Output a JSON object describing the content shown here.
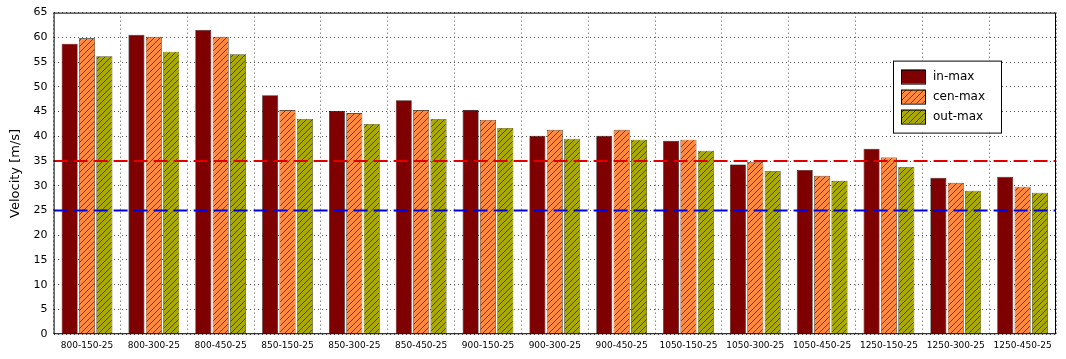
{
  "chart_data": {
    "type": "bar",
    "y_label": "Velocity [m/s]",
    "categories": [
      "800-150-25",
      "800-300-25",
      "800-450-25",
      "850-150-25",
      "850-300-25",
      "850-450-25",
      "900-150-25",
      "900-300-25",
      "900-450-25",
      "1050-150-25",
      "1050-300-25",
      "1050-450-25",
      "1250-150-25",
      "1250-300-25",
      "1250-450-25"
    ],
    "series": [
      {
        "name": "in-max",
        "color": "#7f0000",
        "values": [
          58.7,
          60.5,
          61.5,
          48.3,
          45.1,
          47.3,
          45.3,
          40.1,
          40.1,
          39.1,
          34.3,
          33.2,
          37.5,
          31.6,
          31.8
        ]
      },
      {
        "name": "cen-max",
        "color": "#ff8a3d",
        "values": [
          59.8,
          60.1,
          60.1,
          45.3,
          44.7,
          45.3,
          43.3,
          41.3,
          41.3,
          39.3,
          34.8,
          32.0,
          35.7,
          30.6,
          29.8
        ]
      },
      {
        "name": "out-max",
        "color": "#a9a900",
        "values": [
          56.2,
          57.1,
          56.6,
          43.5,
          42.5,
          43.5,
          41.7,
          39.5,
          39.3,
          37.1,
          33.0,
          31.0,
          33.8,
          29.0,
          28.6
        ]
      }
    ],
    "reference_lines": [
      {
        "value": 35,
        "color": "#e00000",
        "line_style": "dashed"
      },
      {
        "value": 25,
        "color": "#0000e0",
        "line_style": "dashed"
      }
    ],
    "ylim": [
      0,
      65
    ],
    "yticks": [
      0,
      5,
      10,
      15,
      20,
      25,
      30,
      35,
      40,
      45,
      50,
      55,
      60,
      65
    ],
    "grid": true,
    "legend": "upper right"
  }
}
